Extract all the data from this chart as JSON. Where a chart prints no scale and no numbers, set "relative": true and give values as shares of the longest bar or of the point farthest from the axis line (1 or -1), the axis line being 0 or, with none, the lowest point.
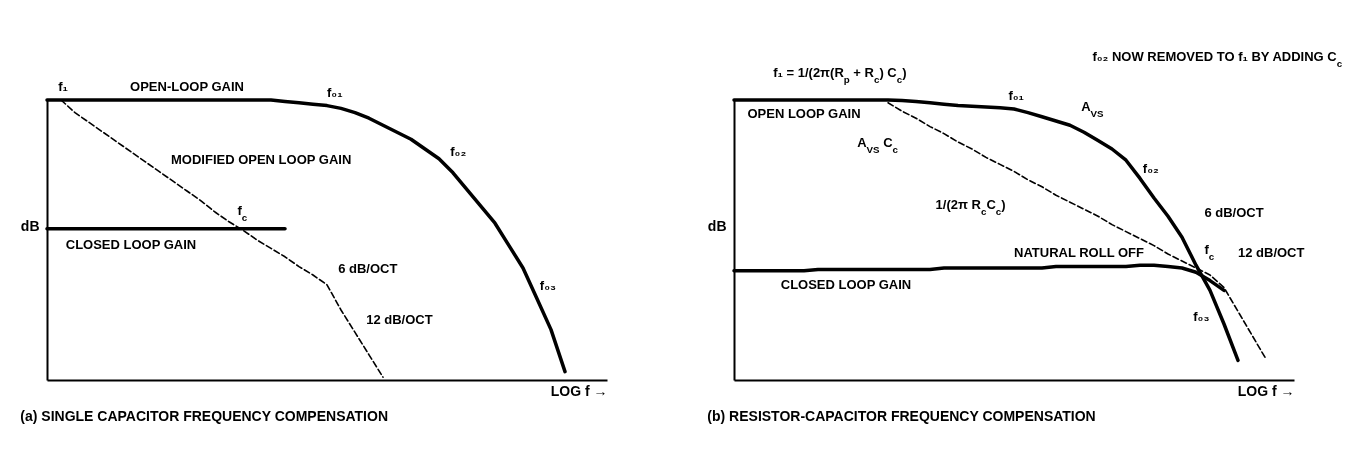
{
  "chart_data": [
    {
      "type": "line",
      "title": "(a) SINGLE CAPACITOR FREQUENCY COMPENSATION",
      "xlabel": "LOG f →",
      "ylabel": "dB",
      "relative": true,
      "tick_labels": false,
      "categories": [
        null,
        null,
        null,
        null,
        null,
        null,
        null,
        null,
        null,
        null,
        null,
        null,
        null,
        null,
        null,
        null,
        null,
        null,
        null,
        null,
        null,
        null,
        null,
        null,
        null,
        null,
        null,
        null,
        null,
        null,
        null,
        null,
        null,
        null,
        null,
        null,
        null,
        null,
        null,
        null,
        null
      ],
      "series": [
        {
          "name": "OPEN-LOOP GAIN",
          "color": "#000000",
          "line_style": "solid",
          "values": [
            1,
            1,
            1,
            1,
            1,
            1,
            1,
            1,
            1,
            1,
            1,
            1,
            1,
            1,
            1,
            1,
            1,
            0.995,
            0.99,
            0.985,
            0.98,
            0.97,
            0.955,
            0.935,
            0.91,
            0.885,
            0.86,
            0.825,
            0.79,
            0.74,
            0.68,
            0.62,
            0.56,
            0.48,
            0.4,
            0.29,
            0.18,
            0.03,
            null,
            null,
            null
          ]
        },
        {
          "name": "MODIFIED OPEN LOOP GAIN",
          "color": "#000000",
          "line_style": "dashed",
          "values": [
            null,
            1,
            0.955,
            0.92,
            0.885,
            0.85,
            0.815,
            0.78,
            0.745,
            0.71,
            0.675,
            0.64,
            0.6,
            0.565,
            0.535,
            0.5,
            0.47,
            0.44,
            0.405,
            0.375,
            0.34,
            0.25,
            0.17,
            0.09,
            0.01,
            null,
            null,
            null,
            null,
            null,
            null,
            null,
            null,
            null,
            null,
            null,
            null,
            null,
            null,
            null,
            null
          ]
        },
        {
          "name": "CLOSED LOOP GAIN",
          "color": "#000000",
          "line_style": "solid",
          "values": [
            0.54,
            0.54,
            0.54,
            0.54,
            0.54,
            0.54,
            0.54,
            0.54,
            0.54,
            0.54,
            0.54,
            0.54,
            0.54,
            0.54,
            0.54,
            0.54,
            0.54,
            0.54,
            null,
            null,
            null,
            null,
            null,
            null,
            null,
            null,
            null,
            null,
            null,
            null,
            null,
            null,
            null,
            null,
            null,
            null,
            null,
            null,
            null,
            null,
            null
          ]
        }
      ],
      "annotations": [
        "f₁",
        "f₀₁",
        "f₀₂",
        "f₀₃",
        "f$_{c}$",
        "6 dB/OCT",
        "12 dB/OCT"
      ]
    },
    {
      "type": "line",
      "title": "(b) RESISTOR-CAPACITOR FREQUENCY COMPENSATION",
      "xlabel": "LOG f →",
      "ylabel": "dB",
      "relative": true,
      "tick_labels": false,
      "categories": [
        null,
        null,
        null,
        null,
        null,
        null,
        null,
        null,
        null,
        null,
        null,
        null,
        null,
        null,
        null,
        null,
        null,
        null,
        null,
        null,
        null,
        null,
        null,
        null,
        null,
        null,
        null,
        null,
        null,
        null,
        null,
        null,
        null,
        null,
        null,
        null,
        null,
        null,
        null,
        null,
        null
      ],
      "series": [
        {
          "name": "OPEN LOOP GAIN",
          "color": "#000000",
          "line_style": "solid",
          "values": [
            1,
            1,
            1,
            1,
            1,
            1,
            1,
            1,
            1,
            1,
            1,
            1,
            0.998,
            0.995,
            0.99,
            0.985,
            0.98,
            0.978,
            0.975,
            0.972,
            0.968,
            0.955,
            0.94,
            0.925,
            0.91,
            0.885,
            0.855,
            0.825,
            0.785,
            0.72,
            0.65,
            0.585,
            0.51,
            0.41,
            0.32,
            0.2,
            0.07,
            null,
            null,
            null,
            null
          ]
        },
        {
          "color": "#000000",
          "line_style": "dashed",
          "values": [
            null,
            null,
            null,
            null,
            null,
            null,
            null,
            null,
            null,
            null,
            null,
            0.99,
            0.96,
            0.935,
            0.905,
            0.88,
            0.85,
            0.825,
            0.795,
            0.77,
            0.745,
            0.715,
            0.69,
            0.66,
            0.635,
            0.61,
            0.585,
            0.555,
            0.53,
            0.505,
            0.48,
            0.45,
            0.425,
            0.4,
            0.375,
            0.33,
            0.245,
            0.16,
            0.075,
            null,
            null
          ]
        },
        {
          "name": "CLOSED LOOP GAIN",
          "color": "#000000",
          "line_style": "solid",
          "values": [
            0.39,
            0.39,
            0.39,
            0.39,
            0.39,
            0.39,
            0.395,
            0.395,
            0.395,
            0.395,
            0.395,
            0.395,
            0.395,
            0.395,
            0.395,
            0.4,
            0.4,
            0.4,
            0.4,
            0.4,
            0.4,
            0.4,
            0.4,
            0.405,
            0.405,
            0.405,
            0.405,
            0.405,
            0.405,
            0.41,
            0.41,
            0.405,
            0.4,
            0.385,
            0.355,
            0.32,
            null,
            null,
            null,
            null,
            null
          ]
        }
      ],
      "annotations": [
        "f₁ = 1/(2π(R$_{p}$ + R$_{c}$) C$_{c}$)",
        "f₀₁",
        "A$_{VS}$",
        "A$_{VS}$ C$_{c}$",
        "f₀₂",
        "1/(2π R$_{c}$C$_{c}$)",
        "NATURAL ROLL OFF",
        "f$_{c}$",
        "6 dB/OCT",
        "12 dB/OCT",
        "f₀₃",
        "f₀₂ NOW REMOVED TO f₁ BY ADDING C$_{c}$"
      ]
    }
  ]
}
